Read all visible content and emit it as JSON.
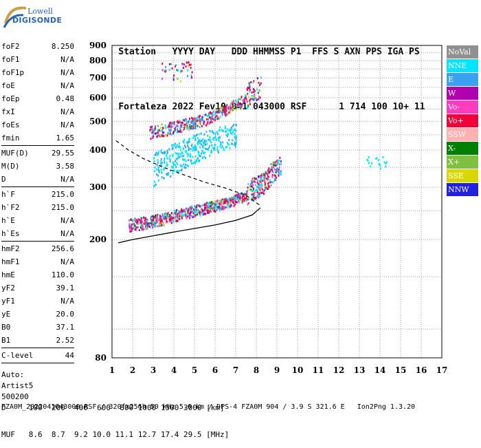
{
  "logo": {
    "line1": "Lowell",
    "line2": "DIGISONDE"
  },
  "header": {
    "row1": [
      "Station",
      "YYYY",
      "DAY",
      "DDD",
      "HHMMSS",
      "P1",
      "FFS",
      "S",
      "AXN",
      "PPS",
      "IGA",
      "PS"
    ],
    "row2": [
      "Fortaleza",
      "2022",
      "Fev10",
      "041",
      "043000",
      "RSF",
      "",
      "1",
      "714",
      "100",
      "10+",
      "11"
    ]
  },
  "params": {
    "group1": [
      {
        "label": "foF2",
        "value": "8.250"
      },
      {
        "label": "foF1",
        "value": "N/A"
      },
      {
        "label": "foF1p",
        "value": "N/A"
      },
      {
        "label": "foE",
        "value": "N/A"
      },
      {
        "label": "foEp",
        "value": "0.48"
      },
      {
        "label": "fxI",
        "value": "N/A"
      },
      {
        "label": "foEs",
        "value": "N/A"
      },
      {
        "label": "fmin",
        "value": "1.65"
      }
    ],
    "group2": [
      {
        "label": "MUF(D)",
        "value": "29.55"
      },
      {
        "label": "M(D)",
        "value": "3.58"
      },
      {
        "label": "D",
        "value": "N/A"
      }
    ],
    "group3": [
      {
        "label": "h`F",
        "value": "215.0"
      },
      {
        "label": "h`F2",
        "value": "215.0"
      },
      {
        "label": "h`E",
        "value": "N/A"
      },
      {
        "label": "h`Es",
        "value": "N/A"
      }
    ],
    "group4": [
      {
        "label": "hmF2",
        "value": "256.6"
      },
      {
        "label": "hmF1",
        "value": "N/A"
      },
      {
        "label": "hmE",
        "value": "110.0"
      },
      {
        "label": "yF2",
        "value": "39.1"
      },
      {
        "label": "yF1",
        "value": "N/A"
      },
      {
        "label": "yE",
        "value": "20.0"
      },
      {
        "label": "B0",
        "value": "37.1"
      },
      {
        "label": "B1",
        "value": "2.52"
      }
    ],
    "group5": [
      {
        "label": "C-level",
        "value": "44"
      }
    ],
    "auto": [
      "Auto:",
      "Artist5",
      "500200"
    ]
  },
  "legend": [
    {
      "label": "NoVal",
      "color": "#909090"
    },
    {
      "label": "NNE",
      "color": "#00e5ff"
    },
    {
      "label": "E",
      "color": "#3aa0f0"
    },
    {
      "label": "W",
      "color": "#b000b0"
    },
    {
      "label": "Vo-",
      "color": "#ff3cc0"
    },
    {
      "label": "Vo+",
      "color": "#f0003a"
    },
    {
      "label": "SSW",
      "color": "#ffb0b0"
    },
    {
      "label": "X-",
      "color": "#008000"
    },
    {
      "label": "X+",
      "color": "#80c040"
    },
    {
      "label": "SSE",
      "color": "#d8d800"
    },
    {
      "label": "NNW",
      "color": "#2020e0"
    }
  ],
  "bottom": {
    "d_label": "D",
    "d_values": [
      "100",
      "200",
      "400",
      "600",
      "800",
      "1000",
      "1500",
      "3000",
      "[km]"
    ],
    "muf_label": "MUF",
    "muf_values": [
      "8.6",
      "8.7",
      "9.2",
      "10.0",
      "11.1",
      "12.7",
      "17.4",
      "29.5",
      "[MHz]"
    ]
  },
  "footer": "FZA0M_2022041043000.RSF / 320fx256h 50 kHz 5.0 km / DPS-4 FZA0M 904 / 3.9 S 321.6 E   Ion2Png 1.3.20",
  "chart_data": {
    "type": "scatter",
    "xlabel": "",
    "ylabel": "",
    "xlim": [
      1,
      17
    ],
    "ylim": [
      80,
      900
    ],
    "x_ticks": [
      "1",
      "2",
      "3",
      "4",
      "5",
      "6",
      "7",
      "8",
      "9",
      "10",
      "11",
      "12",
      "13",
      "14",
      "15",
      "16",
      "17"
    ],
    "y_ticks": [
      "80",
      "200",
      "300",
      "400",
      "500",
      "600",
      "700",
      "800",
      "900"
    ],
    "y_scale": "log",
    "grid": true,
    "traces": [
      {
        "name": "F2 trace",
        "points": [
          [
            1.8,
            220
          ],
          [
            2.5,
            224
          ],
          [
            3.5,
            232
          ],
          [
            4.5,
            242
          ],
          [
            5.5,
            252
          ],
          [
            6.5,
            262
          ],
          [
            7.5,
            278
          ],
          [
            8.3,
            300
          ],
          [
            8.8,
            330
          ],
          [
            9.2,
            350
          ]
        ]
      },
      {
        "name": "F2 second hop",
        "points": [
          [
            2.8,
            452
          ],
          [
            3.5,
            462
          ],
          [
            4.5,
            480
          ],
          [
            5.5,
            500
          ],
          [
            6.5,
            540
          ],
          [
            7.5,
            590
          ],
          [
            8.2,
            640
          ]
        ]
      },
      {
        "name": "oblique spread",
        "points": [
          [
            3.0,
            330
          ],
          [
            4.0,
            360
          ],
          [
            5.0,
            390
          ],
          [
            6.0,
            420
          ],
          [
            7.0,
            430
          ]
        ]
      },
      {
        "name": "NNE echoes",
        "points": [
          [
            13.3,
            365
          ],
          [
            13.6,
            355
          ],
          [
            14.1,
            360
          ],
          [
            14.3,
            355
          ]
        ]
      }
    ],
    "profile_solid": [
      [
        1.3,
        195
      ],
      [
        2,
        200
      ],
      [
        3,
        206
      ],
      [
        4,
        212
      ],
      [
        5,
        218
      ],
      [
        6,
        224
      ],
      [
        7,
        232
      ],
      [
        7.8,
        242
      ],
      [
        8.2,
        256
      ]
    ],
    "profile_dashed": [
      [
        1.2,
        430
      ],
      [
        1.8,
        400
      ],
      [
        2.5,
        375
      ],
      [
        3.5,
        350
      ],
      [
        4.5,
        330
      ],
      [
        5.5,
        312
      ],
      [
        6.5,
        298
      ],
      [
        7.5,
        282
      ],
      [
        8.2,
        260
      ]
    ]
  }
}
